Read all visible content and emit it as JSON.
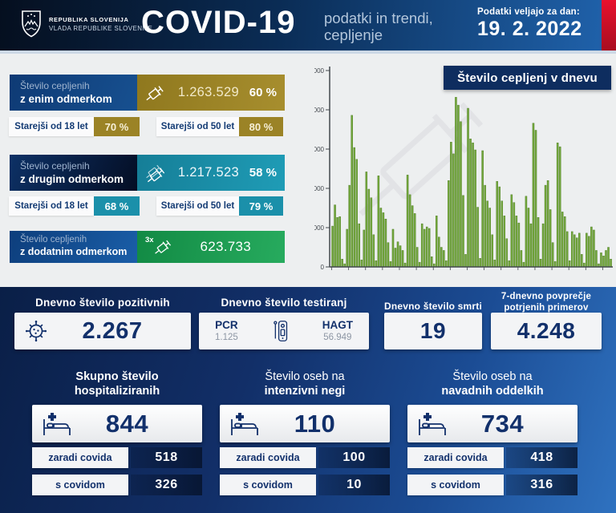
{
  "header": {
    "logo_line1": "REPUBLIKA SLOVENIJA",
    "logo_line2": "VLADA REPUBLIKE SLOVENIJE",
    "title": "COVID-19",
    "subtitle_line1": "podatki in trendi,",
    "subtitle_line2": "cepljenje",
    "date_label": "Podatki veljajo za dan:",
    "date_value": "19. 2. 2022"
  },
  "vaccination": {
    "first_dose": {
      "label_line1": "Število cepljenih",
      "label_line2": "z enim odmerkom",
      "value": "1.263.529",
      "percent": "60 %",
      "age18_label": "Starejši od 18 let",
      "age18_percent": "70 %",
      "age50_label": "Starejši od 50 let",
      "age50_percent": "80 %"
    },
    "second_dose": {
      "label_line1": "Število cepljenih",
      "label_line2": "z drugim odmerkom",
      "value": "1.217.523",
      "percent": "58 %",
      "age18_label": "Starejši od 18 let",
      "age18_percent": "68 %",
      "age50_label": "Starejši od 50 let",
      "age50_percent": "79 %"
    },
    "booster": {
      "label_line1": "Število cepljenih",
      "label_line2": "z dodatnim odmerkom",
      "multiplier": "3x",
      "value": "623.733"
    }
  },
  "chart_data": {
    "type": "bar",
    "title": "Število cepljenj v dnevu",
    "xlabel": "",
    "ylabel": "",
    "ylim": [
      0,
      25000
    ],
    "yticks": [
      0,
      5000,
      10000,
      15000,
      20000,
      25000
    ],
    "grid": false,
    "legend": "none (title badge top-right)",
    "values": [
      5200,
      7900,
      6300,
      6400,
      1000,
      400,
      4800,
      10400,
      19300,
      15200,
      13700,
      5500,
      900,
      4700,
      12100,
      9900,
      8800,
      4100,
      800,
      11600,
      7500,
      6900,
      6100,
      3100,
      700,
      4800,
      2400,
      3200,
      2700,
      2100,
      500,
      11700,
      9200,
      7800,
      6800,
      2500,
      600,
      5500,
      4800,
      5100,
      4900,
      1300,
      400,
      6500,
      3800,
      2500,
      2100,
      800,
      11000,
      15900,
      14400,
      21600,
      20600,
      18500,
      9100,
      1600,
      20200,
      16300,
      15800,
      14900,
      7600,
      1100,
      14800,
      10400,
      8400,
      7500,
      4100,
      900,
      10900,
      10200,
      8400,
      6500,
      3600,
      800,
      9200,
      8200,
      6500,
      5600,
      2100,
      600,
      9000,
      7500,
      5500,
      18300,
      17400,
      6300,
      1000,
      5500,
      10400,
      11000,
      7300,
      3100,
      700,
      15800,
      15300,
      7000,
      6400,
      4500,
      800,
      4500,
      4100,
      3700,
      4300,
      1600,
      500,
      4300,
      3900,
      5100,
      4700,
      2100,
      400,
      1800,
      1400,
      2100,
      2500,
      1000
    ]
  },
  "daily_stats": {
    "positives": {
      "title": "Dnevno število pozitivnih",
      "value": "2.267"
    },
    "tests": {
      "title": "Dnevno število testiranj",
      "pcr_label": "PCR",
      "pcr_value": "1.125",
      "hagt_label": "HAGT",
      "hagt_value": "56.949"
    },
    "deaths": {
      "title": "Dnevno število smrti",
      "value": "19"
    },
    "avg7": {
      "title_line1": "7-dnevno povprečje",
      "title_line2": "potrjenih primerov",
      "value": "4.248"
    }
  },
  "hospital": {
    "total": {
      "title_line1": "Skupno število",
      "title_line2": "hospitaliziranih",
      "value": "844",
      "due_label": "zaradi covida",
      "due_value": "518",
      "with_label": "s covidom",
      "with_value": "326"
    },
    "icu": {
      "title_line1": "Število oseb na",
      "title_line2": "intenzivni negi",
      "value": "110",
      "due_label": "zaradi covida",
      "due_value": "100",
      "with_label": "s covidom",
      "with_value": "10"
    },
    "ward": {
      "title_line1": "Število oseb na",
      "title_line2": "navadnih oddelkih",
      "value": "734",
      "due_label": "zaradi covida",
      "due_value": "418",
      "with_label": "s covidom",
      "with_value": "316"
    }
  },
  "colors": {
    "navy": "#12306b",
    "gold": "#9b8326",
    "teal": "#1b90aa",
    "green": "#1d9a50",
    "red": "#d81228",
    "panel_bg": "#edeff0",
    "bar_green": "#73a73c",
    "bar_edge": "#48791f",
    "watermark": "#e2e3e6",
    "axis": "#43484e"
  }
}
